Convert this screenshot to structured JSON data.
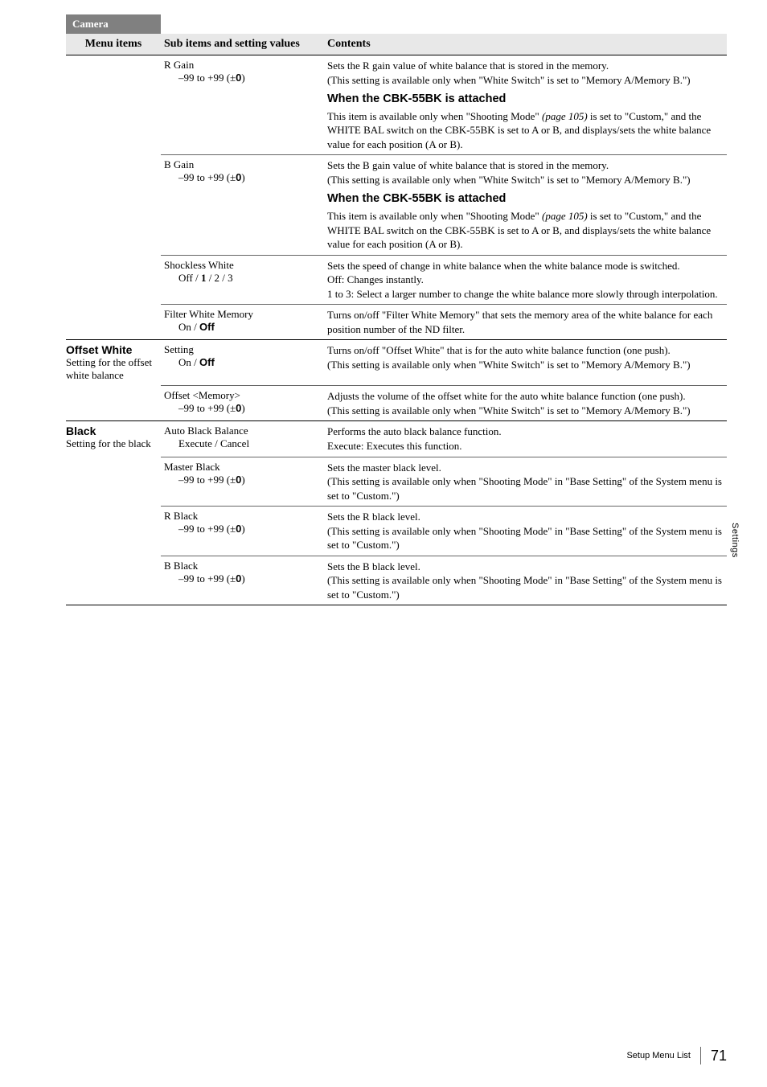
{
  "header": {
    "camera": "Camera",
    "menu_items": "Menu items",
    "sub_items": "Sub items and setting values",
    "contents": "Contents"
  },
  "rows": [
    {
      "menu_bold": "",
      "menu_sub": "",
      "sub_main": "R Gain",
      "sub_val_pre": "–99 to +99 (±",
      "sub_val_bold": "0",
      "sub_val_post": ")",
      "cont_lines": [
        "Sets the R gain value of white balance that is stored in the memory.",
        "(This setting is available only when \"White Switch\" is set to \"Memory A/Memory B.\")"
      ],
      "attached_head": "When the CBK-55BK is attached",
      "attached_body_pre": "This item is available only when \"Shooting Mode\" ",
      "attached_body_italic": "(page 105)",
      "attached_body_post": " is set to \"Custom,\" and the WHITE BAL switch on the CBK-55BK is set to A or B, and displays/sets the white balance value for each position (A or B).",
      "border": "thin"
    },
    {
      "menu_bold": "",
      "menu_sub": "",
      "sub_main": "B Gain",
      "sub_val_pre": "–99 to +99 (±",
      "sub_val_bold": "0",
      "sub_val_post": ")",
      "cont_lines": [
        "Sets the B gain value of white balance that is stored in the memory.",
        "(This setting is available only when \"White Switch\" is set to \"Memory A/Memory B.\")"
      ],
      "attached_head": "When the CBK-55BK is attached",
      "attached_body_pre": "This item is available only when \"Shooting Mode\" ",
      "attached_body_italic": "(page 105)",
      "attached_body_post": " is set to \"Custom,\" and the WHITE BAL switch on the CBK-55BK is set to A or B, and displays/sets the white balance value for each position (A or B).",
      "border": "thin"
    },
    {
      "menu_bold": "",
      "menu_sub": "",
      "sub_main": "Shockless White",
      "sub_val_parts": [
        {
          "t": "Off / ",
          "b": false
        },
        {
          "t": "1",
          "b": true
        },
        {
          "t": " / 2 / 3",
          "b": false
        }
      ],
      "cont_lines": [
        "Sets the speed of change in white balance when the white balance mode is switched.",
        "Off: Changes instantly.",
        "1 to 3: Select a larger number to change the white balance more slowly through interpolation."
      ],
      "border": "thin"
    },
    {
      "menu_bold": "",
      "menu_sub": "",
      "sub_main": "Filter White Memory",
      "sub_val_parts": [
        {
          "t": "On / ",
          "b": false
        },
        {
          "t": "Off",
          "b": true,
          "sans": true
        }
      ],
      "cont_lines": [
        "Turns on/off \"Filter White Memory\" that sets the memory area of the white balance for each position number of the ND filter."
      ],
      "border": "heavy"
    },
    {
      "menu_bold": "Offset White",
      "menu_sub": "Setting for the offset white balance",
      "sub_main": "Setting",
      "sub_val_parts": [
        {
          "t": "On / ",
          "b": false
        },
        {
          "t": "Off",
          "b": true,
          "sans": true
        }
      ],
      "cont_lines": [
        "Turns on/off \"Offset White\" that is for the auto white balance function (one push).",
        "(This setting is available only when \"White Switch\" is set to \"Memory A/Memory B.\")"
      ],
      "border": "thin"
    },
    {
      "menu_bold": "",
      "menu_sub": "",
      "sub_main": "Offset <Memory>",
      "sub_val_pre": "–99 to +99 (±",
      "sub_val_bold": "0",
      "sub_val_post": ")",
      "cont_lines": [
        "Adjusts the volume of the offset white for the auto white balance function (one push).",
        "(This setting is available only when \"White Switch\" is set to \"Memory A/Memory B.\")"
      ],
      "border": "heavy"
    },
    {
      "menu_bold": "Black",
      "menu_sub": "Setting for the black",
      "sub_main": "Auto Black Balance",
      "sub_val_parts": [
        {
          "t": "Execute / Cancel",
          "b": false
        }
      ],
      "cont_lines": [
        "  Performs the auto black balance function.",
        "  Execute: Executes this function."
      ],
      "border": "thin"
    },
    {
      "menu_bold": "",
      "menu_sub": "",
      "sub_main": "Master Black",
      "sub_val_pre": "–99 to +99 (±",
      "sub_val_bold": "0",
      "sub_val_post": ")",
      "cont_lines": [
        "Sets the master black level.",
        "(This setting is available only when \"Shooting Mode\" in \"Base Setting\" of the System menu is set to \"Custom.\")"
      ],
      "border": "thin"
    },
    {
      "menu_bold": "",
      "menu_sub": "",
      "sub_main": "R Black",
      "sub_val_pre": "–99 to +99 (±",
      "sub_val_bold": "0",
      "sub_val_post": ")",
      "cont_lines": [
        "Sets the R black level.",
        "(This setting is available only when \"Shooting Mode\" in \"Base Setting\" of the System menu is set to \"Custom.\")"
      ],
      "border": "thin"
    },
    {
      "menu_bold": "",
      "menu_sub": "",
      "sub_main": "B Black",
      "sub_val_pre": "–99 to +99 (±",
      "sub_val_bold": "0",
      "sub_val_post": ")",
      "cont_lines": [
        "Sets the B black level.",
        "(This setting is available only when \"Shooting Mode\" in \"Base Setting\" of the System menu is set to \"Custom.\")"
      ],
      "border": "heavy"
    }
  ],
  "side_label": "Settings",
  "footer": {
    "title": "Setup Menu List",
    "page": "71"
  }
}
